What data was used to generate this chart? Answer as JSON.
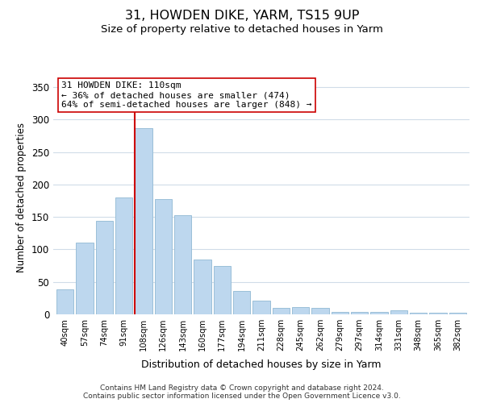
{
  "title": "31, HOWDEN DIKE, YARM, TS15 9UP",
  "subtitle": "Size of property relative to detached houses in Yarm",
  "xlabel": "Distribution of detached houses by size in Yarm",
  "ylabel": "Number of detached properties",
  "bar_labels": [
    "40sqm",
    "57sqm",
    "74sqm",
    "91sqm",
    "108sqm",
    "126sqm",
    "143sqm",
    "160sqm",
    "177sqm",
    "194sqm",
    "211sqm",
    "228sqm",
    "245sqm",
    "262sqm",
    "279sqm",
    "297sqm",
    "314sqm",
    "331sqm",
    "348sqm",
    "365sqm",
    "382sqm"
  ],
  "bar_values": [
    38,
    110,
    144,
    180,
    287,
    178,
    153,
    85,
    74,
    36,
    21,
    10,
    11,
    10,
    4,
    4,
    4,
    6,
    2,
    2,
    2
  ],
  "bar_color": "#bdd7ee",
  "bar_edge_color": "#9abfd8",
  "vline_color": "#cc0000",
  "vline_bar_index": 4,
  "annotation_text": "31 HOWDEN DIKE: 110sqm\n← 36% of detached houses are smaller (474)\n64% of semi-detached houses are larger (848) →",
  "annotation_box_color": "#ffffff",
  "annotation_box_edge": "#cc0000",
  "ylim": [
    0,
    360
  ],
  "yticks": [
    0,
    50,
    100,
    150,
    200,
    250,
    300,
    350
  ],
  "footer": "Contains HM Land Registry data © Crown copyright and database right 2024.\nContains public sector information licensed under the Open Government Licence v3.0.",
  "bg_color": "#ffffff",
  "grid_color": "#d0dce8",
  "title_fontsize": 11.5,
  "subtitle_fontsize": 9.5,
  "footer_fontsize": 6.5
}
